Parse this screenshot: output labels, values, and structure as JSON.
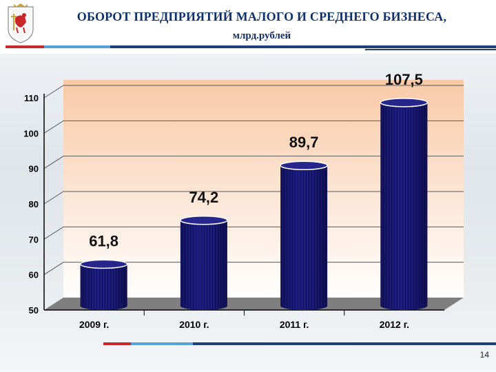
{
  "header": {
    "title": "ОБОРОТ ПРЕДПРИЯТИЙ МАЛОГО И СРЕДНЕГО БИЗНЕСА,",
    "subtitle": "млрд.рублей"
  },
  "chart_data": {
    "type": "bar",
    "categories": [
      "2009 г.",
      "2010 г.",
      "2011 г.",
      "2012 г."
    ],
    "values": [
      61.8,
      74.2,
      89.7,
      107.5
    ],
    "value_labels": [
      "61,8",
      "74,2",
      "89,7",
      "107,5"
    ],
    "y_ticks": [
      50,
      60,
      70,
      80,
      90,
      100,
      110
    ],
    "ylim": [
      50,
      110
    ],
    "title": "",
    "xlabel": "",
    "ylabel": "",
    "grid": true,
    "style": "3d-cylinder",
    "colors": {
      "bar": "#1a1a78",
      "bar_top": "#26268c",
      "wall_top": "#f8c9a6",
      "wall_bottom": "#ffffff",
      "floor": "#7f7f7f"
    }
  },
  "footer": {
    "page_number": "14"
  }
}
